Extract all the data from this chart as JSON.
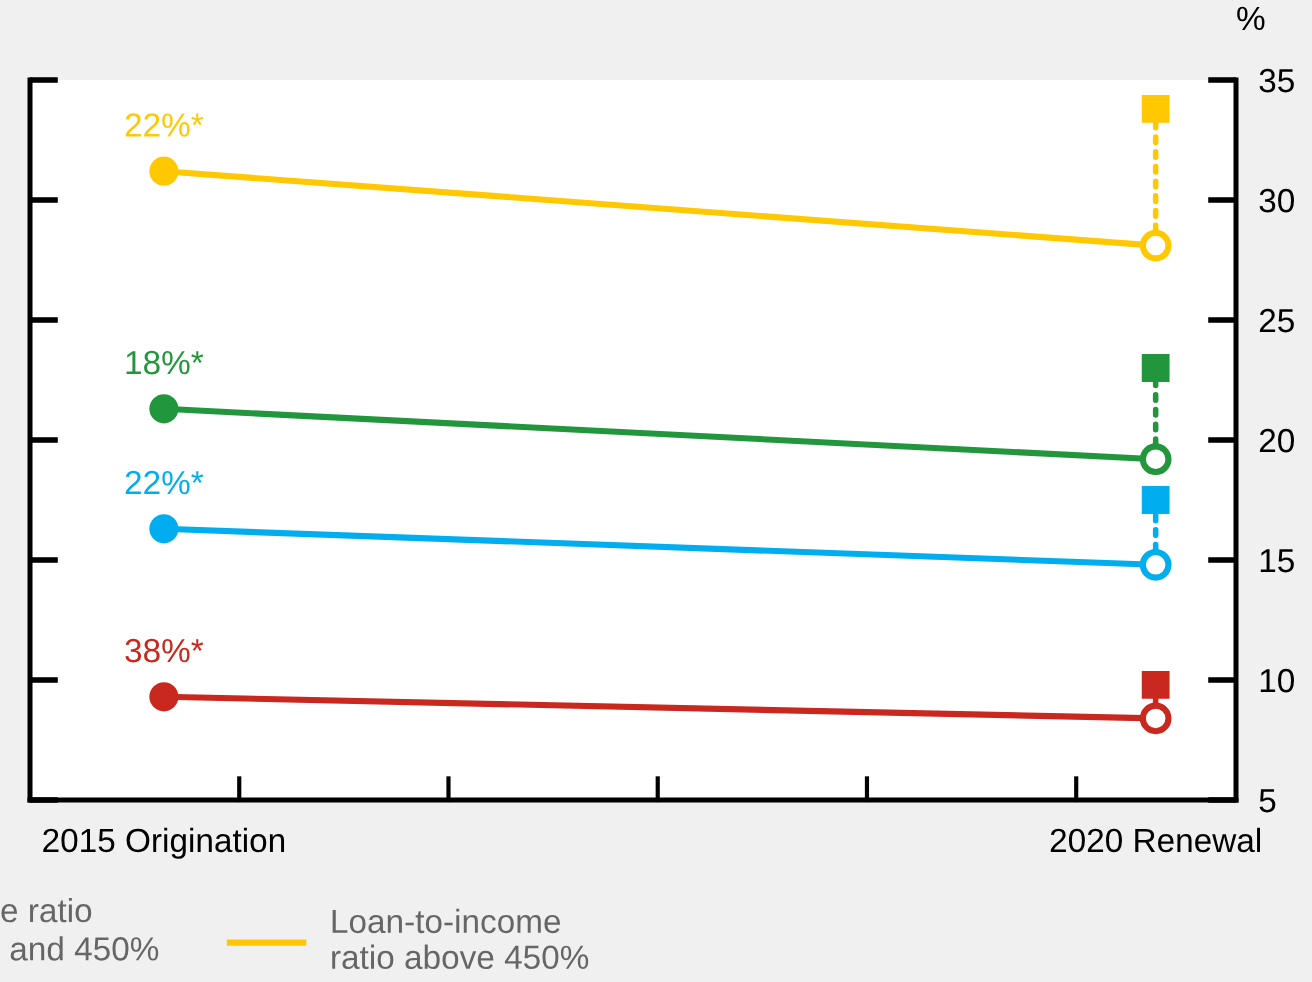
{
  "chart_data": {
    "type": "line",
    "ylabel": "%",
    "categories": [
      "2015 Origination",
      "2020 Renewal"
    ],
    "series": [
      {
        "name": null,
        "color": "#c8281e",
        "values": [
          9.3,
          8.4
        ]
      },
      {
        "name": null,
        "color": "#00aeef",
        "values": [
          16.3,
          14.8
        ]
      },
      {
        "name": null,
        "color": "#22963c",
        "values": [
          21.3,
          19.2
        ]
      },
      {
        "name": "Loan-to-income\nratio above 450%",
        "color": "#ffc800",
        "values": [
          31.2,
          28.1
        ]
      },
      {
        "type": "line",
        "color": "#c8281e",
        "x": [
          "2020 Renewal",
          "2020 Renewal"
        ],
        "values": [
          8.4,
          9.8
        ],
        "line_style": "dotted",
        "marker": "square"
      },
      {
        "type": "line",
        "color": "#00aeef",
        "x": [
          "2020 Renewal",
          "2020 Renewal"
        ],
        "values": [
          14.8,
          17.5
        ],
        "line_style": "dotted",
        "marker": "square"
      },
      {
        "type": "line",
        "color": "#22963c",
        "x": [
          "2020 Renewal",
          "2020 Renewal"
        ],
        "values": [
          19.2,
          23.0
        ],
        "line_style": "dotted",
        "marker": "square"
      },
      {
        "type": "line",
        "color": "#ffc800",
        "x": [
          "2020 Renewal",
          "2020 Renewal"
        ],
        "values": [
          28.1,
          33.8
        ],
        "line_style": "dotted",
        "marker": "square"
      }
    ],
    "marker": "circle",
    "ylim": [
      5,
      35
    ],
    "yticks": [
      5,
      10,
      15,
      20,
      25,
      30,
      35
    ],
    "annotations": [
      {
        "text": "38%*",
        "x": "2015 Origination",
        "y": 9.3
      },
      {
        "text": "22%*",
        "x": "2015 Origination",
        "y": 16.3
      },
      {
        "text": "18%*",
        "x": "2015 Origination",
        "y": 21.3
      },
      {
        "text": "22%*",
        "x": "2015 Origination",
        "y": 31.2
      },
      "e ratio\n and 450%"
    ],
    "grid": false,
    "legend": "bottom"
  }
}
